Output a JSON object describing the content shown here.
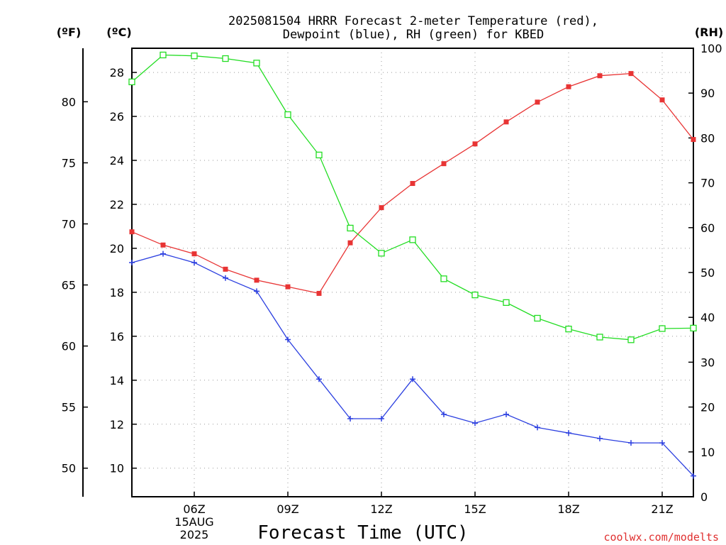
{
  "chart_data": {
    "type": "line",
    "title_line1": "2025081504 HRRR Forecast 2-meter Temperature (red),",
    "title_line2": "Dewpoint (blue), RH (green) for KBED",
    "xlabel": "Forecast Time (UTC)",
    "credit": "coolwx.com/modelts",
    "units": {
      "fahrenheit": "(ºF)",
      "celsius": "(ºC)",
      "rh": "(RH)"
    },
    "x_hours": [
      4,
      5,
      6,
      7,
      8,
      9,
      10,
      11,
      12,
      13,
      14,
      15,
      16,
      17,
      18,
      19,
      20,
      21,
      22
    ],
    "xlim": [
      4,
      22
    ],
    "x_ticks": [
      {
        "hour": 6,
        "lines": [
          "06Z",
          "15AUG",
          "2025"
        ]
      },
      {
        "hour": 9,
        "lines": [
          "09Z"
        ]
      },
      {
        "hour": 12,
        "lines": [
          "12Z"
        ]
      },
      {
        "hour": 15,
        "lines": [
          "15Z"
        ]
      },
      {
        "hour": 18,
        "lines": [
          "18Z"
        ]
      },
      {
        "hour": 21,
        "lines": [
          "21Z"
        ]
      }
    ],
    "celsius_axis": {
      "lim": [
        8.7,
        29.1
      ],
      "ticks": [
        10,
        12,
        14,
        16,
        18,
        20,
        22,
        24,
        26,
        28
      ]
    },
    "fahrenheit_axis": {
      "ticks": [
        50,
        55,
        60,
        65,
        70,
        75,
        80
      ]
    },
    "rh_axis": {
      "lim": [
        0,
        100
      ],
      "ticks": [
        0,
        10,
        20,
        30,
        40,
        50,
        60,
        70,
        80,
        90,
        100
      ]
    },
    "grid": true,
    "series": [
      {
        "key": "temperature",
        "axis": "celsius",
        "color": "#e83434",
        "marker": "filled-square",
        "values": [
          20.75,
          20.15,
          19.75,
          19.05,
          18.55,
          18.25,
          17.95,
          20.25,
          21.85,
          22.95,
          23.85,
          24.75,
          25.75,
          26.65,
          27.35,
          27.85,
          27.95,
          26.75,
          24.95
        ]
      },
      {
        "key": "dewpoint",
        "axis": "celsius",
        "color": "#2b3fe0",
        "marker": "plus",
        "values": [
          19.35,
          19.75,
          19.35,
          18.65,
          18.05,
          15.85,
          14.05,
          12.25,
          12.25,
          14.05,
          12.45,
          12.05,
          12.45,
          11.85,
          11.6,
          11.35,
          11.15,
          11.15,
          9.65
        ]
      },
      {
        "key": "rh",
        "axis": "rh",
        "color": "#22dd22",
        "marker": "open-square",
        "values": [
          92.5,
          98.5,
          98.3,
          97.7,
          96.7,
          85.2,
          76.2,
          59.9,
          54.3,
          57.3,
          48.6,
          45.0,
          43.3,
          39.8,
          37.4,
          35.6,
          35.0,
          37.5,
          37.6
        ]
      }
    ]
  }
}
